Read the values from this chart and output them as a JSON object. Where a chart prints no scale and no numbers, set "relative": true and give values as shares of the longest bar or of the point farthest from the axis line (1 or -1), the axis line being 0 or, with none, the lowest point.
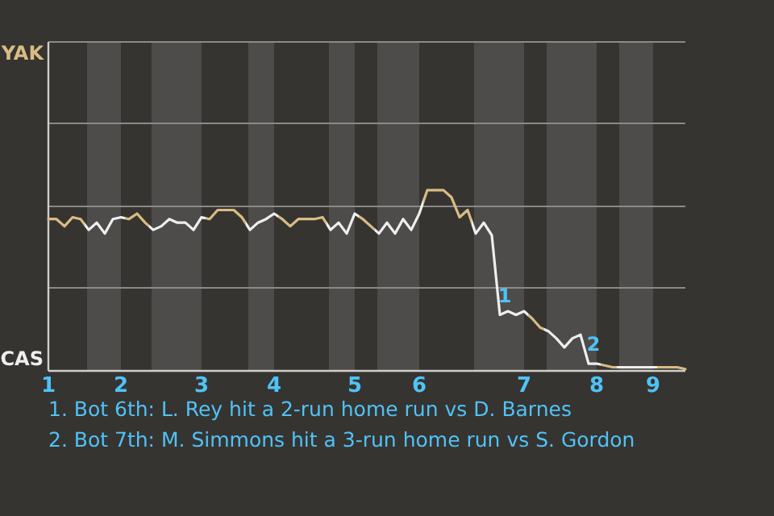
{
  "chart_data": {
    "type": "line",
    "relative": true,
    "categories": [
      "1",
      null,
      null,
      null,
      null,
      null,
      null,
      null,
      null,
      "2",
      null,
      null,
      null,
      null,
      null,
      null,
      null,
      null,
      null,
      "3",
      null,
      null,
      null,
      null,
      null,
      null,
      null,
      null,
      "4",
      null,
      null,
      null,
      null,
      null,
      null,
      null,
      null,
      null,
      "5",
      null,
      null,
      null,
      null,
      null,
      null,
      null,
      "6",
      null,
      null,
      null,
      null,
      null,
      null,
      null,
      null,
      null,
      null,
      null,
      null,
      "7",
      null,
      null,
      null,
      null,
      null,
      null,
      null,
      null,
      "8",
      null,
      null,
      null,
      null,
      null,
      null,
      "9",
      null,
      null,
      null,
      null
    ],
    "series": [
      {
        "values": [
          0.84,
          0.84,
          0.8,
          0.85,
          0.84,
          0.78,
          0.82,
          0.76,
          0.84,
          0.85,
          0.84,
          0.87,
          0.82,
          0.78,
          0.8,
          0.84,
          0.82,
          0.82,
          0.78,
          0.85,
          0.84,
          0.89,
          0.89,
          0.89,
          0.85,
          0.78,
          0.82,
          0.84,
          0.87,
          0.84,
          0.8,
          0.84,
          0.84,
          0.84,
          0.85,
          0.78,
          0.82,
          0.76,
          0.87,
          0.84,
          0.8,
          0.76,
          0.82,
          0.76,
          0.84,
          0.78,
          0.87,
          1,
          1,
          1,
          0.96,
          0.85,
          0.89,
          0.76,
          0.82,
          0.75,
          0.31,
          0.33,
          0.31,
          0.33,
          0.29,
          0.24,
          0.22,
          0.18,
          0.13,
          0.18,
          0.2,
          0.04,
          0.04,
          0.03,
          0.02,
          0.02,
          0.02,
          0.02,
          0.02,
          0.02,
          0.02,
          0.02,
          0.02,
          0.01
        ],
        "colors": [
          "#d9bc82",
          "#d9bc82",
          "#d9bc82",
          "#d9bc82",
          "#d9bc82",
          "#eeeeee",
          "#eeeeee",
          "#eeeeee",
          "#eeeeee",
          "#eeeeee",
          "#d9bc82",
          "#d9bc82",
          "#d9bc82",
          "#eeeeee",
          "#eeeeee",
          "#eeeeee",
          "#eeeeee",
          "#eeeeee",
          "#eeeeee",
          "#eeeeee",
          "#d9bc82",
          "#d9bc82",
          "#d9bc82",
          "#d9bc82",
          "#d9bc82",
          "#eeeeee",
          "#eeeeee",
          "#eeeeee",
          "#eeeeee",
          "#d9bc82",
          "#d9bc82",
          "#d9bc82",
          "#d9bc82",
          "#d9bc82",
          "#d9bc82",
          "#eeeeee",
          "#eeeeee",
          "#eeeeee",
          "#eeeeee",
          "#d9bc82",
          "#d9bc82",
          "#eeeeee",
          "#eeeeee",
          "#eeeeee",
          "#eeeeee",
          "#eeeeee",
          "#eeeeee",
          "#d9bc82",
          "#d9bc82",
          "#d9bc82",
          "#d9bc82",
          "#d9bc82",
          "#d9bc82",
          "#eeeeee",
          "#eeeeee",
          "#eeeeee",
          "#eeeeee",
          "#eeeeee",
          "#eeeeee",
          "#eeeeee",
          "#d9bc82",
          "#d9bc82",
          "#eeeeee",
          "#eeeeee",
          "#eeeeee",
          "#eeeeee",
          "#eeeeee",
          "#eeeeee",
          "#eeeeee",
          "#d9bc82",
          "#d9bc82",
          "#eeeeee",
          "#eeeeee",
          "#eeeeee",
          "#eeeeee",
          "#eeeeee",
          "#d9bc82",
          "#d9bc82",
          "#d9bc82",
          "#d9bc82"
        ]
      }
    ],
    "ref_lines": [
      {
        "axis": "y",
        "value": 0.46,
        "color": "#8c8a88"
      },
      {
        "axis": "y",
        "value": 0.91,
        "color": "#8c8a88"
      },
      {
        "axis": "y",
        "value": 1.37,
        "color": "#8c8a88"
      },
      {
        "axis": "y",
        "value": 1.82,
        "color": "#8c8a88"
      }
    ],
    "marker": "none",
    "line_style": "solid",
    "annotations": [
      "YAK",
      "CAS",
      "1",
      "2",
      "1. Bot 6th: L. Rey hit a 2-run home run vs D. Barnes",
      "2. Bot 7th: M. Simmons hit a 3-run home run vs S. Gordon"
    ]
  }
}
